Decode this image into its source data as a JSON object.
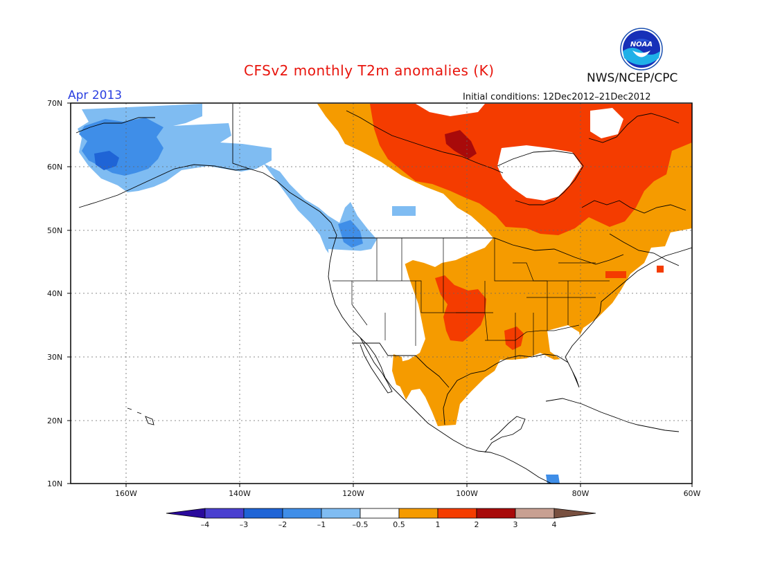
{
  "title": "CFSv2 monthly T2m anomalies (K)",
  "agency": "NWS/NCEP/CPC",
  "logo_text": "NOAA",
  "valid_month": "Apr 2013",
  "initial_conditions": "Initial conditions: 12Dec2012–21Dec2012",
  "lat_labels": [
    "70N",
    "60N",
    "50N",
    "40N",
    "30N",
    "20N",
    "10N"
  ],
  "lon_labels": [
    "160W",
    "140W",
    "120W",
    "100W",
    "80W",
    "60W"
  ],
  "colorbar": {
    "ticks": [
      "–4",
      "–3",
      "–2",
      "–1",
      "–0.5",
      "0.5",
      "1",
      "2",
      "3",
      "4"
    ],
    "colors": [
      "#2a0a9c",
      "#4a3fd0",
      "#1f64d6",
      "#3f8ee8",
      "#7fbcf2",
      "#ffffff",
      "#f59b00",
      "#f43c00",
      "#a80a0a",
      "#c8a092",
      "#785040"
    ]
  },
  "anomaly_categories": {
    "minus_3_to_minus_2": "#1f64d6",
    "minus_2_to_minus_1": "#3f8ee8",
    "minus_1_to_minus_0.5": "#7fbcf2",
    "plus_0.5_to_1": "#f59b00",
    "plus_1_to_2": "#f43c00",
    "plus_2_to_3": "#a80a0a"
  }
}
